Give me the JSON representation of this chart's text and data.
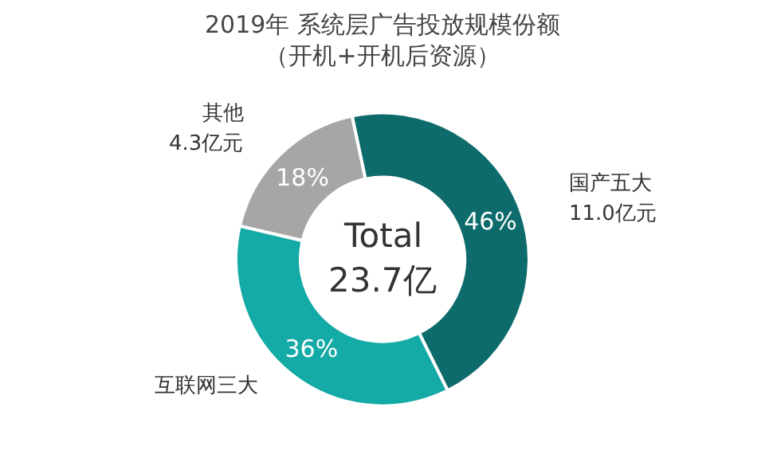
{
  "chart_data": {
    "type": "donut",
    "title": "2019年 系统层广告投放规模份额",
    "subtitle": "（开机+开机后资源）",
    "categories": [
      "国产五大",
      "互联网三大",
      "其他"
    ],
    "values": [
      46,
      36,
      18
    ],
    "colors": [
      "#0e6b6b",
      "#14aaa6",
      "#a6a6a6"
    ],
    "value_labels": [
      "46%",
      "36%",
      "18%"
    ],
    "annotations": [
      "11.0亿元",
      "4.3亿元",
      "Total",
      "23.7亿"
    ],
    "legend": false
  }
}
